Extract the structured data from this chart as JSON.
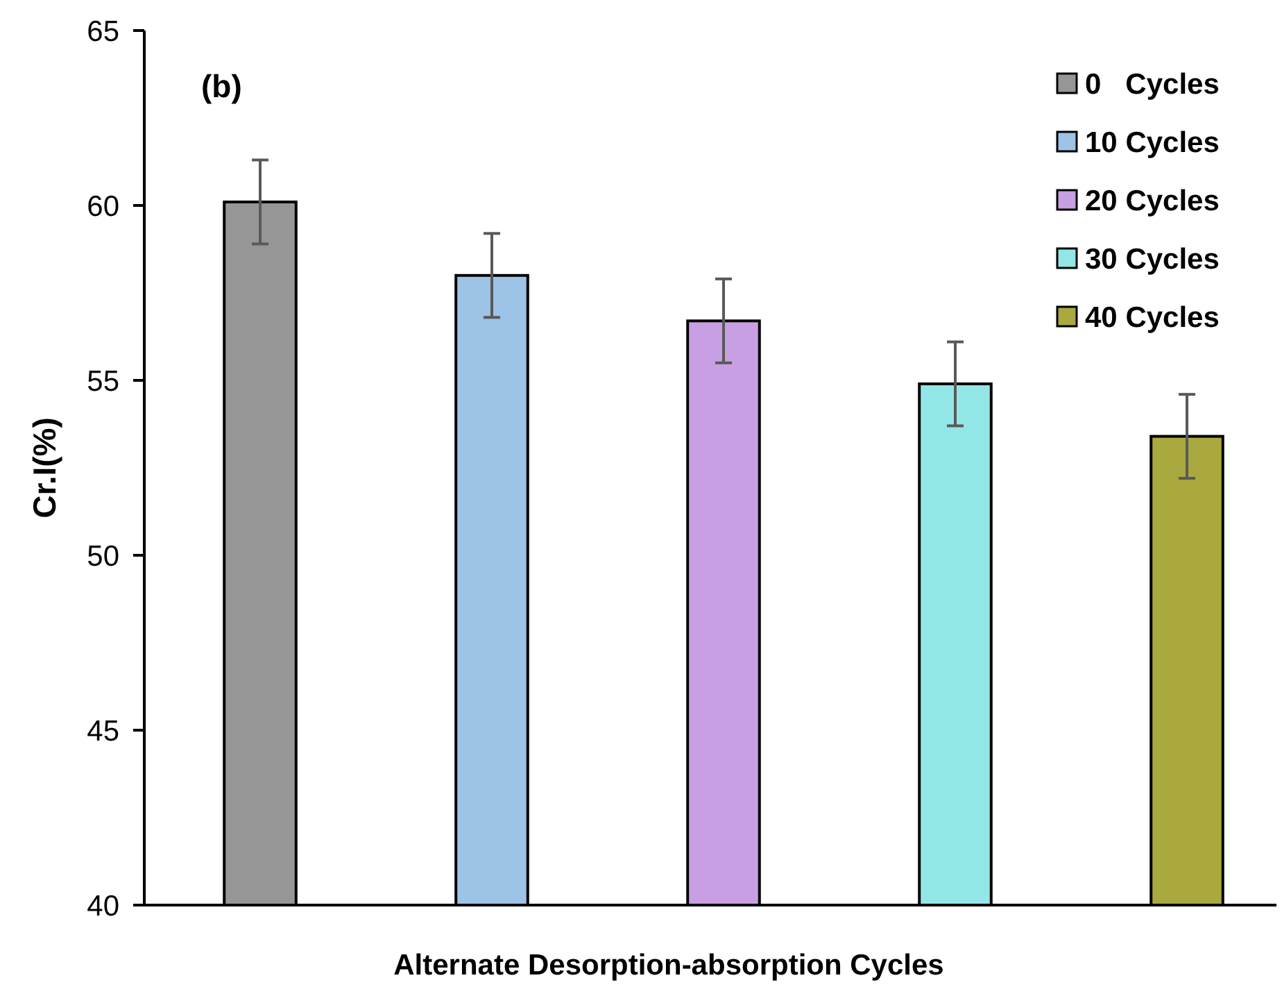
{
  "chart_data": {
    "type": "bar",
    "xlabel": "Alternate Desorption-absorption Cycles",
    "ylabel": "Cr.I(%)",
    "annotations": [
      "(b)"
    ],
    "categories": [
      null
    ],
    "series": [
      {
        "name": "0   Cycles",
        "color": "#969696",
        "values": [
          60.1
        ],
        "errors": [
          1.2
        ]
      },
      {
        "name": "10 Cycles",
        "color": "#9dc3e6",
        "values": [
          58.0
        ],
        "errors": [
          1.2
        ]
      },
      {
        "name": "20 Cycles",
        "color": "#c89fe3",
        "values": [
          56.7
        ],
        "errors": [
          1.2
        ]
      },
      {
        "name": "30 Cycles",
        "color": "#93e6e6",
        "values": [
          54.9
        ],
        "errors": [
          1.2
        ]
      },
      {
        "name": "40 Cycles",
        "color": "#a9a93f",
        "values": [
          53.4
        ],
        "errors": [
          1.2
        ]
      }
    ],
    "ylim": [
      40,
      65
    ],
    "yticks": [
      40,
      45,
      50,
      55,
      60,
      65
    ],
    "legend": "top right",
    "grid": false
  }
}
